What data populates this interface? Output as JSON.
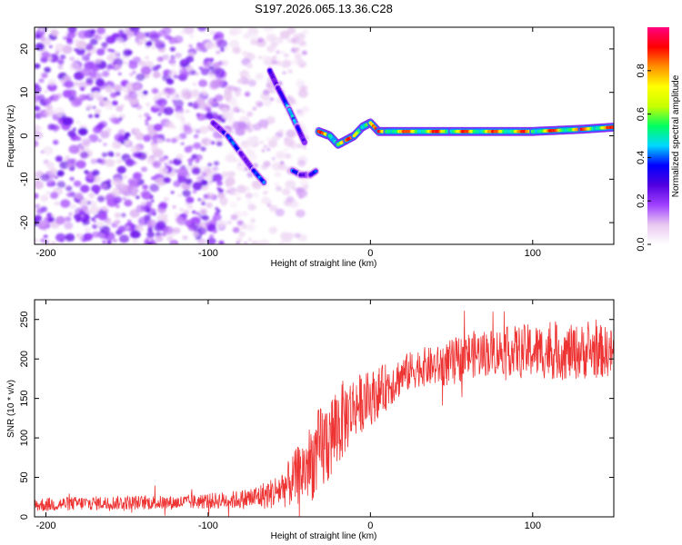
{
  "title": "S197.2026.065.13.36.C28",
  "chart_data": [
    {
      "type": "heatmap",
      "name": "spectrogram",
      "xlabel": "Height of straight line (km)",
      "ylabel": "Frequency (Hz)",
      "xlim": [
        -207,
        150
      ],
      "ylim": [
        -25,
        25
      ],
      "xticks": [
        -200,
        -100,
        0,
        100
      ],
      "yticks": [
        -20,
        -10,
        0,
        10,
        20
      ],
      "xtick_labels": [
        "-200",
        "-100",
        "0",
        "100"
      ],
      "ytick_labels": [
        "-20",
        "-10",
        "0",
        "10",
        "20"
      ],
      "colorbar": {
        "label": "Normalized spectral amplitude",
        "range": [
          0.0,
          1.0
        ],
        "ticks": [
          0.0,
          0.2,
          0.4,
          0.6,
          0.8
        ],
        "tick_labels": [
          "0.0",
          "0.2",
          "0.4",
          "0.6",
          "0.8"
        ],
        "colors": [
          "#ffffff",
          "#e8c8f0",
          "#a040ff",
          "#5000e0",
          "#0000ff",
          "#00d8ff",
          "#00ff60",
          "#c8ff00",
          "#ffff00",
          "#ff9000",
          "#ff0000",
          "#ff0080"
        ]
      },
      "features": [
        {
          "label": "noise",
          "x_range": [
            -207,
            -90
          ],
          "freq_range": [
            -25,
            25
          ],
          "amplitude": 0.15
        },
        {
          "label": "noise (sparse)",
          "x_range": [
            -90,
            -40
          ],
          "freq_range": [
            -25,
            25
          ],
          "amplitude": 0.08
        },
        {
          "label": "track A",
          "points": [
            [
              -97,
              3
            ],
            [
              -88,
              0
            ],
            [
              -80,
              -4
            ],
            [
              -72,
              -8
            ],
            [
              -65,
              -11
            ]
          ],
          "amplitude": 0.35
        },
        {
          "label": "track B",
          "points": [
            [
              -62,
              15
            ],
            [
              -57,
              11
            ],
            [
              -50,
              6
            ],
            [
              -45,
              2
            ],
            [
              -40,
              -2
            ]
          ],
          "amplitude": 0.4
        },
        {
          "label": "track C",
          "points": [
            [
              -48,
              -8
            ],
            [
              -43,
              -9
            ],
            [
              -37,
              -9
            ],
            [
              -33,
              -8
            ]
          ],
          "amplitude": 0.35
        },
        {
          "label": "main line",
          "points": [
            [
              -32,
              1
            ],
            [
              -25,
              0
            ],
            [
              -20,
              -2
            ],
            [
              -15,
              -1
            ],
            [
              -10,
              0
            ],
            [
              -5,
              2
            ],
            [
              0,
              3
            ],
            [
              5,
              1
            ],
            [
              10,
              1
            ],
            [
              50,
              1
            ],
            [
              100,
              1
            ],
            [
              130,
              1.5
            ],
            [
              150,
              2
            ]
          ],
          "amplitude": 0.85
        }
      ]
    },
    {
      "type": "line",
      "name": "snr",
      "xlabel": "Height of straight line (km)",
      "ylabel": "SNR (10 * v/v)",
      "xlim": [
        -207,
        150
      ],
      "ylim": [
        0,
        275
      ],
      "xticks": [
        -200,
        -100,
        0,
        100
      ],
      "yticks": [
        0,
        50,
        100,
        150,
        200,
        250
      ],
      "xtick_labels": [
        "-200",
        "-100",
        "0",
        "100"
      ],
      "ytick_labels": [
        "0",
        "50",
        "100",
        "150",
        "200",
        "250"
      ],
      "color": "#ee3333",
      "series": [
        {
          "name": "SNR",
          "x": [
            -207,
            -180,
            -150,
            -120,
            -100,
            -80,
            -70,
            -60,
            -50,
            -40,
            -30,
            -20,
            -10,
            0,
            10,
            20,
            30,
            40,
            50,
            60,
            80,
            100,
            120,
            140,
            150
          ],
          "y": [
            15,
            17,
            18,
            18,
            20,
            22,
            25,
            30,
            42,
            62,
            85,
            115,
            140,
            150,
            165,
            180,
            190,
            190,
            195,
            205,
            210,
            210,
            208,
            210,
            208
          ],
          "noise_amplitude": [
            9,
            9,
            9,
            9,
            10,
            12,
            16,
            20,
            30,
            45,
            60,
            55,
            40,
            35,
            30,
            25,
            25,
            25,
            30,
            30,
            30,
            35,
            35,
            35,
            30
          ]
        }
      ]
    }
  ]
}
